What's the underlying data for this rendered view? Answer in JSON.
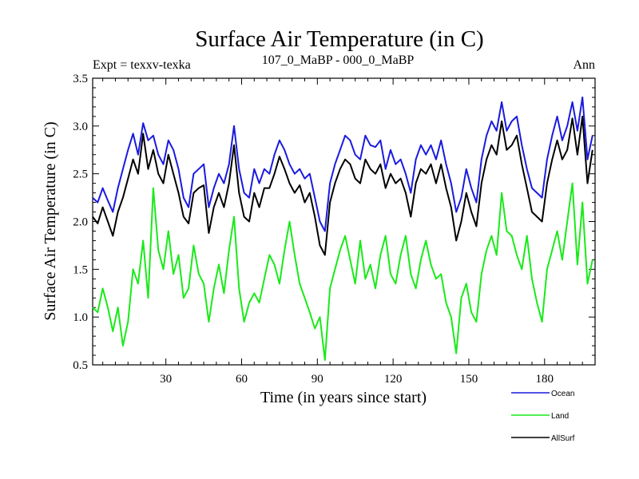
{
  "chart_data": {
    "type": "line",
    "title": "Surface Air Temperature (in C)",
    "subtitle_left": "Expt = texxv-texka",
    "subtitle_center": "107_0_MaBP - 000_0_MaBP",
    "subtitle_right": "Ann",
    "xlabel": "Time (in years since start)",
    "ylabel": "Surface Air Temperature (in C)",
    "xlim": [
      1,
      200
    ],
    "ylim": [
      0.5,
      3.5
    ],
    "xticks": [
      30,
      60,
      90,
      120,
      150,
      180
    ],
    "xtick_labels": [
      "30",
      "60",
      "90",
      "120",
      "150",
      "180"
    ],
    "yticks": [
      0.5,
      1.0,
      1.5,
      2.0,
      2.5,
      3.0,
      3.5
    ],
    "ytick_labels": [
      "0.5",
      "1.0",
      "1.5",
      "2.0",
      "2.5",
      "3.0",
      "3.5"
    ],
    "legend_position": "bottom-right, outside plot",
    "series": [
      {
        "name": "Ocean",
        "color": "#1a1adf",
        "points": [
          [
            1,
            2.25
          ],
          [
            3,
            2.2
          ],
          [
            5,
            2.35
          ],
          [
            7,
            2.22
          ],
          [
            9,
            2.1
          ],
          [
            11,
            2.35
          ],
          [
            13,
            2.55
          ],
          [
            15,
            2.75
          ],
          [
            17,
            2.92
          ],
          [
            19,
            2.7
          ],
          [
            21,
            3.03
          ],
          [
            23,
            2.85
          ],
          [
            25,
            2.9
          ],
          [
            27,
            2.7
          ],
          [
            29,
            2.6
          ],
          [
            31,
            2.85
          ],
          [
            33,
            2.75
          ],
          [
            35,
            2.55
          ],
          [
            37,
            2.25
          ],
          [
            39,
            2.15
          ],
          [
            41,
            2.5
          ],
          [
            43,
            2.55
          ],
          [
            45,
            2.6
          ],
          [
            47,
            2.15
          ],
          [
            49,
            2.35
          ],
          [
            51,
            2.5
          ],
          [
            53,
            2.4
          ],
          [
            55,
            2.6
          ],
          [
            57,
            3.0
          ],
          [
            59,
            2.55
          ],
          [
            61,
            2.3
          ],
          [
            63,
            2.25
          ],
          [
            65,
            2.55
          ],
          [
            67,
            2.4
          ],
          [
            69,
            2.55
          ],
          [
            71,
            2.5
          ],
          [
            73,
            2.7
          ],
          [
            75,
            2.85
          ],
          [
            77,
            2.75
          ],
          [
            79,
            2.6
          ],
          [
            81,
            2.5
          ],
          [
            83,
            2.55
          ],
          [
            85,
            2.45
          ],
          [
            87,
            2.5
          ],
          [
            89,
            2.25
          ],
          [
            91,
            2.0
          ],
          [
            93,
            1.9
          ],
          [
            95,
            2.4
          ],
          [
            97,
            2.6
          ],
          [
            99,
            2.75
          ],
          [
            101,
            2.9
          ],
          [
            103,
            2.85
          ],
          [
            105,
            2.7
          ],
          [
            107,
            2.65
          ],
          [
            109,
            2.9
          ],
          [
            111,
            2.8
          ],
          [
            113,
            2.78
          ],
          [
            115,
            2.85
          ],
          [
            117,
            2.55
          ],
          [
            119,
            2.75
          ],
          [
            121,
            2.6
          ],
          [
            123,
            2.65
          ],
          [
            125,
            2.5
          ],
          [
            127,
            2.3
          ],
          [
            129,
            2.65
          ],
          [
            131,
            2.8
          ],
          [
            133,
            2.7
          ],
          [
            135,
            2.8
          ],
          [
            137,
            2.65
          ],
          [
            139,
            2.85
          ],
          [
            141,
            2.6
          ],
          [
            143,
            2.4
          ],
          [
            145,
            2.1
          ],
          [
            147,
            2.25
          ],
          [
            149,
            2.55
          ],
          [
            151,
            2.35
          ],
          [
            153,
            2.2
          ],
          [
            155,
            2.65
          ],
          [
            157,
            2.9
          ],
          [
            159,
            3.05
          ],
          [
            161,
            2.95
          ],
          [
            163,
            3.25
          ],
          [
            165,
            2.95
          ],
          [
            167,
            3.05
          ],
          [
            169,
            3.1
          ],
          [
            171,
            2.8
          ],
          [
            173,
            2.55
          ],
          [
            175,
            2.35
          ],
          [
            177,
            2.3
          ],
          [
            179,
            2.25
          ],
          [
            181,
            2.65
          ],
          [
            183,
            2.9
          ],
          [
            185,
            3.1
          ],
          [
            187,
            2.85
          ],
          [
            189,
            3.0
          ],
          [
            191,
            3.25
          ],
          [
            193,
            2.95
          ],
          [
            195,
            3.3
          ],
          [
            197,
            2.65
          ],
          [
            199,
            2.9
          ]
        ]
      },
      {
        "name": "Land",
        "color": "#19ea19",
        "points": [
          [
            1,
            1.1
          ],
          [
            3,
            1.05
          ],
          [
            5,
            1.3
          ],
          [
            7,
            1.1
          ],
          [
            9,
            0.85
          ],
          [
            11,
            1.1
          ],
          [
            13,
            0.7
          ],
          [
            15,
            0.95
          ],
          [
            17,
            1.5
          ],
          [
            19,
            1.35
          ],
          [
            21,
            1.8
          ],
          [
            23,
            1.2
          ],
          [
            25,
            2.35
          ],
          [
            27,
            1.7
          ],
          [
            29,
            1.5
          ],
          [
            31,
            1.9
          ],
          [
            33,
            1.45
          ],
          [
            35,
            1.65
          ],
          [
            37,
            1.2
          ],
          [
            39,
            1.3
          ],
          [
            41,
            1.75
          ],
          [
            43,
            1.45
          ],
          [
            45,
            1.35
          ],
          [
            47,
            0.95
          ],
          [
            49,
            1.3
          ],
          [
            51,
            1.55
          ],
          [
            53,
            1.25
          ],
          [
            55,
            1.7
          ],
          [
            57,
            2.05
          ],
          [
            59,
            1.3
          ],
          [
            61,
            0.95
          ],
          [
            63,
            1.15
          ],
          [
            65,
            1.25
          ],
          [
            67,
            1.15
          ],
          [
            69,
            1.4
          ],
          [
            71,
            1.65
          ],
          [
            73,
            1.55
          ],
          [
            75,
            1.35
          ],
          [
            77,
            1.7
          ],
          [
            79,
            2.0
          ],
          [
            81,
            1.65
          ],
          [
            83,
            1.35
          ],
          [
            85,
            1.2
          ],
          [
            87,
            1.05
          ],
          [
            89,
            0.88
          ],
          [
            91,
            1.0
          ],
          [
            93,
            0.55
          ],
          [
            95,
            1.3
          ],
          [
            97,
            1.5
          ],
          [
            99,
            1.7
          ],
          [
            101,
            1.85
          ],
          [
            103,
            1.6
          ],
          [
            105,
            1.35
          ],
          [
            107,
            1.8
          ],
          [
            109,
            1.4
          ],
          [
            111,
            1.55
          ],
          [
            113,
            1.3
          ],
          [
            115,
            1.65
          ],
          [
            117,
            1.85
          ],
          [
            119,
            1.45
          ],
          [
            121,
            1.35
          ],
          [
            123,
            1.65
          ],
          [
            125,
            1.85
          ],
          [
            127,
            1.45
          ],
          [
            129,
            1.3
          ],
          [
            131,
            1.6
          ],
          [
            133,
            1.8
          ],
          [
            135,
            1.55
          ],
          [
            137,
            1.4
          ],
          [
            139,
            1.45
          ],
          [
            141,
            1.15
          ],
          [
            143,
            1.0
          ],
          [
            145,
            0.62
          ],
          [
            147,
            1.2
          ],
          [
            149,
            1.35
          ],
          [
            151,
            1.05
          ],
          [
            153,
            0.95
          ],
          [
            155,
            1.45
          ],
          [
            157,
            1.7
          ],
          [
            159,
            1.85
          ],
          [
            161,
            1.65
          ],
          [
            163,
            2.3
          ],
          [
            165,
            1.9
          ],
          [
            167,
            1.85
          ],
          [
            169,
            1.65
          ],
          [
            171,
            1.5
          ],
          [
            173,
            1.85
          ],
          [
            175,
            1.4
          ],
          [
            177,
            1.15
          ],
          [
            179,
            0.95
          ],
          [
            181,
            1.5
          ],
          [
            183,
            1.7
          ],
          [
            185,
            1.9
          ],
          [
            187,
            1.6
          ],
          [
            189,
            2.0
          ],
          [
            191,
            2.4
          ],
          [
            193,
            1.55
          ],
          [
            195,
            2.2
          ],
          [
            197,
            1.35
          ],
          [
            199,
            1.6
          ]
        ]
      },
      {
        "name": "AllSurf",
        "color": "#000000",
        "points": [
          [
            1,
            2.05
          ],
          [
            3,
            1.98
          ],
          [
            5,
            2.15
          ],
          [
            7,
            2.0
          ],
          [
            9,
            1.85
          ],
          [
            11,
            2.1
          ],
          [
            13,
            2.25
          ],
          [
            15,
            2.45
          ],
          [
            17,
            2.65
          ],
          [
            19,
            2.5
          ],
          [
            21,
            2.92
          ],
          [
            23,
            2.55
          ],
          [
            25,
            2.75
          ],
          [
            27,
            2.5
          ],
          [
            29,
            2.4
          ],
          [
            31,
            2.7
          ],
          [
            33,
            2.5
          ],
          [
            35,
            2.3
          ],
          [
            37,
            2.05
          ],
          [
            39,
            1.98
          ],
          [
            41,
            2.3
          ],
          [
            43,
            2.35
          ],
          [
            45,
            2.38
          ],
          [
            47,
            1.88
          ],
          [
            49,
            2.15
          ],
          [
            51,
            2.3
          ],
          [
            53,
            2.15
          ],
          [
            55,
            2.4
          ],
          [
            57,
            2.8
          ],
          [
            59,
            2.3
          ],
          [
            61,
            2.05
          ],
          [
            63,
            2.0
          ],
          [
            65,
            2.3
          ],
          [
            67,
            2.15
          ],
          [
            69,
            2.35
          ],
          [
            71,
            2.35
          ],
          [
            73,
            2.5
          ],
          [
            75,
            2.68
          ],
          [
            77,
            2.55
          ],
          [
            79,
            2.4
          ],
          [
            81,
            2.3
          ],
          [
            83,
            2.38
          ],
          [
            85,
            2.2
          ],
          [
            87,
            2.3
          ],
          [
            89,
            2.05
          ],
          [
            91,
            1.75
          ],
          [
            93,
            1.65
          ],
          [
            95,
            2.2
          ],
          [
            97,
            2.4
          ],
          [
            99,
            2.55
          ],
          [
            101,
            2.65
          ],
          [
            103,
            2.6
          ],
          [
            105,
            2.45
          ],
          [
            107,
            2.4
          ],
          [
            109,
            2.65
          ],
          [
            111,
            2.55
          ],
          [
            113,
            2.5
          ],
          [
            115,
            2.6
          ],
          [
            117,
            2.35
          ],
          [
            119,
            2.5
          ],
          [
            121,
            2.4
          ],
          [
            123,
            2.45
          ],
          [
            125,
            2.3
          ],
          [
            127,
            2.05
          ],
          [
            129,
            2.4
          ],
          [
            131,
            2.55
          ],
          [
            133,
            2.5
          ],
          [
            135,
            2.6
          ],
          [
            137,
            2.4
          ],
          [
            139,
            2.6
          ],
          [
            141,
            2.35
          ],
          [
            143,
            2.15
          ],
          [
            145,
            1.8
          ],
          [
            147,
            2.0
          ],
          [
            149,
            2.3
          ],
          [
            151,
            2.1
          ],
          [
            153,
            1.95
          ],
          [
            155,
            2.4
          ],
          [
            157,
            2.65
          ],
          [
            159,
            2.8
          ],
          [
            161,
            2.7
          ],
          [
            163,
            3.05
          ],
          [
            165,
            2.75
          ],
          [
            167,
            2.8
          ],
          [
            169,
            2.9
          ],
          [
            171,
            2.6
          ],
          [
            173,
            2.35
          ],
          [
            175,
            2.1
          ],
          [
            177,
            2.05
          ],
          [
            179,
            2.0
          ],
          [
            181,
            2.4
          ],
          [
            183,
            2.65
          ],
          [
            185,
            2.85
          ],
          [
            187,
            2.65
          ],
          [
            189,
            2.75
          ],
          [
            191,
            3.08
          ],
          [
            193,
            2.7
          ],
          [
            195,
            3.1
          ],
          [
            197,
            2.4
          ],
          [
            199,
            2.75
          ]
        ]
      }
    ]
  }
}
